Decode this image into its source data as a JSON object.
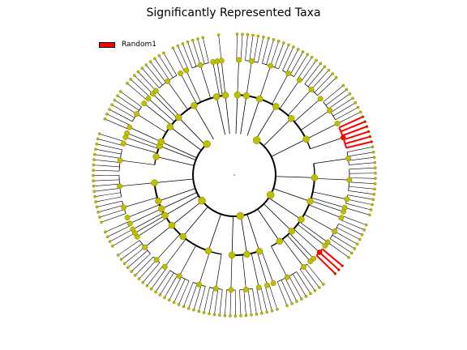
{
  "figure": {
    "title": "Significantly Represented Taxa"
  },
  "legend": {
    "items": [
      {
        "label": "Random1",
        "color": "#ff0000"
      }
    ]
  },
  "colors": {
    "node_fill": "#bfbf00",
    "node_stroke": "#7f7f00",
    "edge": "#000000",
    "highlight": "#ff0000",
    "background": "#ffffff"
  }
}
